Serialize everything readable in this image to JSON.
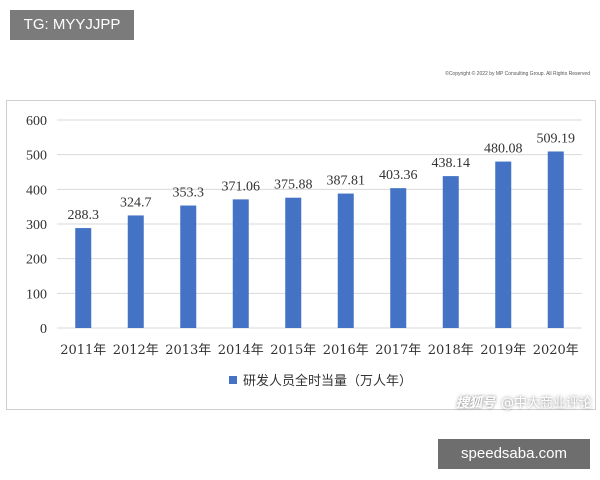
{
  "tag_badge": "TG: MYYJJPP",
  "copyright": "©Copyright © 2022 by MP Consulting Group. All Rights Reserved",
  "footer_brand": {
    "platform": "搜狐号",
    "account": "@中大商业评论"
  },
  "site_badge": "speedsaba.com",
  "colors": {
    "bar": "#4472c4",
    "grid": "#d9d9d9",
    "text": "#333333"
  },
  "chart_data": {
    "type": "bar",
    "title": "",
    "xlabel": "",
    "ylabel": "",
    "categories": [
      "2011年",
      "2012年",
      "2013年",
      "2014年",
      "2015年",
      "2016年",
      "2017年",
      "2018年",
      "2019年",
      "2020年"
    ],
    "series": [
      {
        "name": "研发人员全时当量（万人年）",
        "values": [
          288.3,
          324.7,
          353.3,
          371.06,
          375.88,
          387.81,
          403.36,
          438.14,
          480.08,
          509.19
        ]
      }
    ],
    "data_labels": [
      "288.3",
      "324.7",
      "353.3",
      "371.06",
      "375.88",
      "387.81",
      "403.36",
      "438.14",
      "480.08",
      "509.19"
    ],
    "ylim": [
      0,
      600
    ],
    "yticks": [
      0,
      100,
      200,
      300,
      400,
      500,
      600
    ],
    "grid": true,
    "legend_position": "bottom"
  }
}
